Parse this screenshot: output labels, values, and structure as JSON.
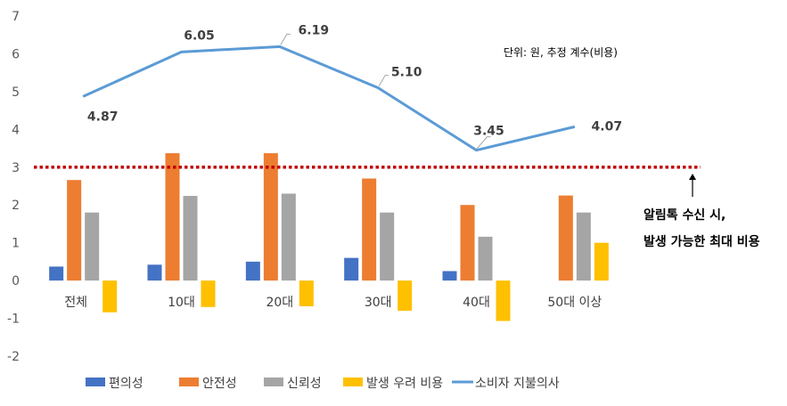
{
  "chart_data": {
    "type": "bar",
    "unit_note": "단위: 원, 추정 계수(비용)",
    "categories": [
      "전체",
      "10대",
      "20대",
      "30대",
      "40대",
      "50대 이상"
    ],
    "ylim": [
      -2,
      7
    ],
    "yticks": [
      -2,
      -1,
      0,
      1,
      2,
      3,
      4,
      5,
      6,
      7
    ],
    "grid": false,
    "legend_position": "bottom",
    "series": [
      {
        "name": "편의성",
        "kind": "bar",
        "color": "#4472C4",
        "values": [
          0.37,
          0.42,
          0.5,
          0.6,
          0.25,
          0
        ]
      },
      {
        "name": "안전성",
        "kind": "bar",
        "color": "#ED7D31",
        "values": [
          2.66,
          3.37,
          3.37,
          2.7,
          2.0,
          2.25
        ]
      },
      {
        "name": "신뢰성",
        "kind": "bar",
        "color": "#A5A5A5",
        "values": [
          1.8,
          2.24,
          2.3,
          1.8,
          1.16,
          1.8
        ]
      },
      {
        "name": "발생 우려 비용",
        "kind": "bar",
        "color": "#FFC000",
        "values": [
          -0.84,
          -0.7,
          -0.68,
          -0.8,
          -1.07,
          1.0
        ]
      },
      {
        "name": "소비자 지불의사",
        "kind": "line",
        "color": "#5B9BD5",
        "values": [
          4.87,
          6.05,
          6.19,
          5.1,
          3.45,
          4.07
        ],
        "labels": [
          "4.87",
          "6.05",
          "6.19",
          "5.10",
          "3.45",
          "4.07"
        ]
      }
    ],
    "reference_line": {
      "value": 3,
      "color": "#C00000",
      "style": "dotted"
    },
    "callout": [
      "알림톡 수신 시,",
      "발생 가능한 최대 비용"
    ]
  }
}
